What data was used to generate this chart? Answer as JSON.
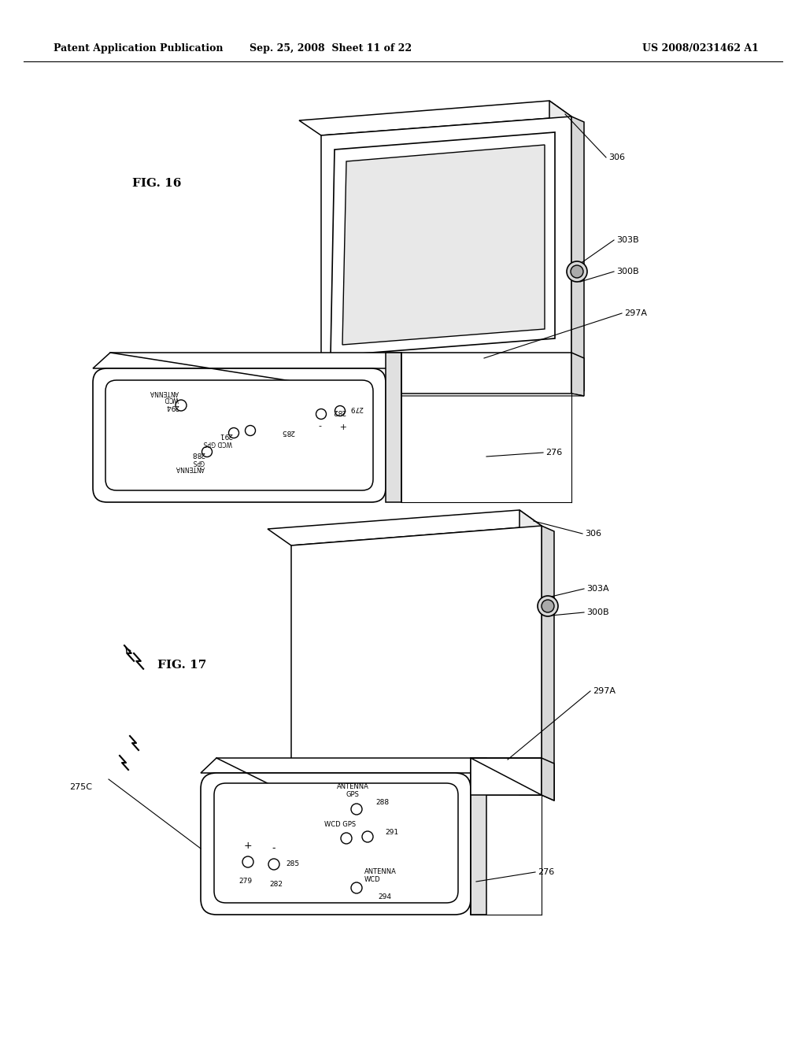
{
  "header_left": "Patent Application Publication",
  "header_center": "Sep. 25, 2008  Sheet 11 of 22",
  "header_right": "US 2008/0231462 A1",
  "fig16_label": "FIG. 16",
  "fig17_label": "FIG. 17",
  "bg_color": "#ffffff",
  "line_color": "#000000",
  "header_fontsize": 9,
  "fig_label_fontsize": 11,
  "annotation_fontsize": 7.5
}
